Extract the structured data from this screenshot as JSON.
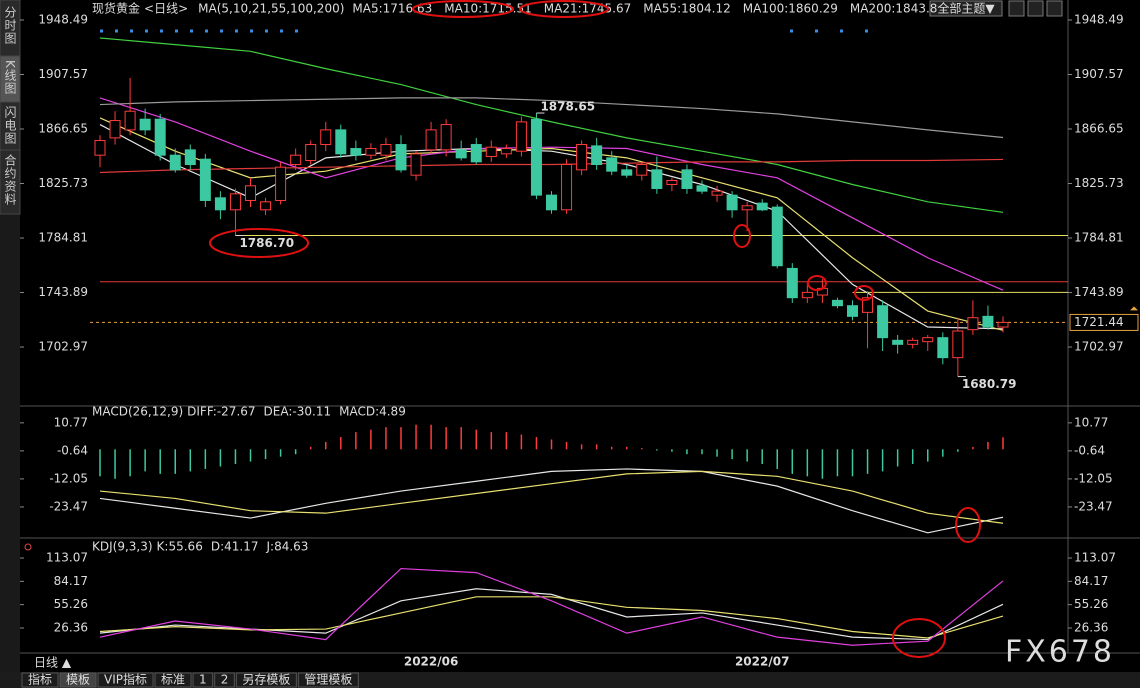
{
  "sidebar": [
    "分时图",
    "K线图",
    "闪电图",
    "合约资料"
  ],
  "header": {
    "symbol": "现货黄金",
    "period": "<日线>",
    "ma_params": "MA(5,10,21,55,100,200)",
    "theme": "全部主题▼"
  },
  "chart_data": [
    {
      "type": "candlestick",
      "categories": [
        null,
        null,
        null,
        null,
        null,
        null,
        null,
        null,
        null,
        null,
        null,
        null,
        null,
        null,
        null,
        null,
        null,
        null,
        null,
        null,
        null,
        null,
        "2022/06",
        null,
        null,
        null,
        null,
        null,
        null,
        null,
        null,
        null,
        null,
        null,
        null,
        null,
        null,
        null,
        null,
        null,
        null,
        null,
        null,
        null,
        "2022/07",
        null,
        null,
        null,
        null,
        null,
        null,
        null,
        null,
        null,
        null,
        null,
        null,
        null,
        null,
        null,
        null
      ],
      "open": [
        1847,
        1860,
        1866,
        1874,
        1874,
        1847,
        1851,
        1844,
        1815,
        1806,
        1813,
        1806,
        1813,
        1840,
        1843,
        1855,
        1866,
        1852,
        1847,
        1847,
        1855,
        1832,
        1851,
        1851,
        1851,
        1855,
        1846,
        1848,
        1850,
        1874,
        1817,
        1806,
        1836,
        1854,
        1845,
        1836,
        1832,
        1836,
        1825,
        1836,
        1824,
        1817,
        1817,
        1806,
        1811,
        1808,
        1762,
        1740,
        1742,
        1738,
        1734,
        1729,
        1734,
        1708,
        1705,
        1707,
        1710,
        1695,
        1716,
        1726,
        1718
      ],
      "high": [
        1862,
        1880,
        1905,
        1882,
        1878,
        1852,
        1855,
        1848,
        1820,
        1822,
        1830,
        1815,
        1842,
        1852,
        1858,
        1872,
        1870,
        1858,
        1856,
        1860,
        1862,
        1850,
        1872,
        1874,
        1858,
        1860,
        1858,
        1855,
        1876,
        1878.65,
        1820,
        1844,
        1858,
        1860,
        1850,
        1840,
        1842,
        1846,
        1830,
        1840,
        1828,
        1824,
        1820,
        1812,
        1814,
        1810,
        1766,
        1752,
        1754,
        1740,
        1738,
        1745,
        1738,
        1712,
        1710,
        1712,
        1714,
        1725,
        1738,
        1734,
        1726
      ],
      "low": [
        1838,
        1855,
        1862,
        1862,
        1843,
        1834,
        1836,
        1808,
        1799,
        1786.7,
        1808,
        1802,
        1810,
        1836,
        1840,
        1850,
        1845,
        1843,
        1844,
        1843,
        1834,
        1828,
        1848,
        1846,
        1843,
        1840,
        1842,
        1845,
        1846,
        1814,
        1803,
        1803,
        1832,
        1836,
        1832,
        1830,
        1828,
        1818,
        1820,
        1818,
        1818,
        1812,
        1800,
        1790,
        1805,
        1762,
        1736,
        1736,
        1736,
        1732,
        1723,
        1702,
        1700,
        1698,
        1702,
        1700,
        1690,
        1680.79,
        1712,
        1716,
        1714
      ],
      "close": [
        1858,
        1873,
        1880,
        1866,
        1847,
        1836,
        1840,
        1813,
        1806,
        1818,
        1824,
        1812,
        1838,
        1847,
        1855,
        1866,
        1848,
        1847,
        1852,
        1855,
        1836,
        1848,
        1866,
        1870,
        1845,
        1842,
        1853,
        1852,
        1872,
        1817,
        1806,
        1840,
        1855,
        1840,
        1835,
        1832,
        1840,
        1822,
        1828,
        1822,
        1820,
        1820,
        1806,
        1809,
        1806,
        1764,
        1740,
        1744,
        1747,
        1734,
        1726,
        1740,
        1710,
        1705,
        1708,
        1710,
        1695,
        1715,
        1725,
        1718,
        1721.44
      ],
      "up_color": "#ff3b3b",
      "down_color": "#3cc8a0",
      "ylim": [
        1661.7,
        1954.5
      ],
      "yticks": [
        1948.49,
        1907.57,
        1866.65,
        1825.73,
        1784.81,
        1743.89,
        1702.97
      ],
      "series": [
        {
          "label": "MA5:",
          "color": "#e6e6e6",
          "x": [
            0,
            5,
            10,
            15,
            20,
            25,
            30,
            35,
            40,
            45,
            50,
            55,
            60
          ],
          "values": [
            1870,
            1840,
            1815,
            1845,
            1850,
            1852,
            1850,
            1840,
            1825,
            1805,
            1750,
            1718,
            1716.63
          ]
        },
        {
          "label": "MA10:",
          "color": "#e8e070",
          "x": [
            0,
            5,
            10,
            15,
            20,
            25,
            30,
            35,
            40,
            45,
            50,
            55,
            60
          ],
          "values": [
            1875,
            1850,
            1830,
            1835,
            1848,
            1850,
            1852,
            1845,
            1830,
            1815,
            1770,
            1730,
            1715.51
          ]
        },
        {
          "label": "MA21:",
          "color": "#e040e0",
          "x": [
            0,
            5,
            10,
            15,
            20,
            25,
            30,
            35,
            40,
            45,
            50,
            55,
            60
          ],
          "values": [
            1890,
            1872,
            1850,
            1830,
            1845,
            1852,
            1853,
            1852,
            1840,
            1830,
            1800,
            1770,
            1745.67
          ]
        },
        {
          "label": "MA55:",
          "color": "#40d040",
          "x": [
            0,
            5,
            10,
            15,
            20,
            25,
            30,
            35,
            40,
            45,
            50,
            55,
            60
          ],
          "values": [
            1935,
            1930,
            1925,
            1912,
            1900,
            1885,
            1872,
            1860,
            1850,
            1840,
            1825,
            1812,
            1804.12
          ]
        },
        {
          "label": "MA100:",
          "color": "#9a9a9a",
          "x": [
            0,
            5,
            10,
            15,
            20,
            25,
            30,
            35,
            40,
            45,
            50,
            55,
            60
          ],
          "values": [
            1885,
            1887,
            1888,
            1889,
            1890,
            1890,
            1888,
            1885,
            1882,
            1878,
            1872,
            1866,
            1860.29
          ]
        },
        {
          "label": "MA200:",
          "color": "#e03a3a",
          "x": [
            0,
            5,
            10,
            15,
            20,
            25,
            30,
            35,
            40,
            45,
            50,
            55,
            60
          ],
          "values": [
            1834,
            1836,
            1837,
            1838,
            1839,
            1840,
            1840,
            1841,
            1842,
            1842,
            1843,
            1843,
            1843.8
          ]
        }
      ],
      "hlines": [
        {
          "value": 1786.7,
          "color": "#e8e060",
          "start": 9
        },
        {
          "value": 1752,
          "color": "#e03a3a",
          "start": 0
        },
        {
          "value": 1744,
          "color": "#e8e060",
          "start": 50
        }
      ],
      "last_price": 1721.44,
      "annotations": [
        {
          "value": 1878.65,
          "label": "1878.65",
          "color": "#e03a3a"
        },
        {
          "value": 1786.7,
          "label": "1786.70",
          "color": "#3cc8a0"
        },
        {
          "value": 1680.79,
          "label": "1680.79",
          "color": "#3cc8a0"
        }
      ]
    },
    {
      "type": "macd",
      "title": "MACD(26,12,9)",
      "histogram": {
        "label": "MACD:",
        "color": "#e040e0",
        "values": [
          -11,
          -12,
          -11,
          -9,
          -10,
          -10,
          -9,
          -8,
          -7,
          -6,
          -5,
          -4,
          -3,
          -2,
          1,
          3,
          5,
          7,
          8,
          9,
          9,
          10,
          10,
          9,
          9,
          8,
          7,
          7,
          6,
          5,
          4,
          3,
          2,
          2,
          1,
          1,
          0.5,
          -0.5,
          -1,
          -2,
          -2,
          -3,
          -4,
          -5,
          -6,
          -8,
          -10,
          -11,
          -12,
          -11,
          -11,
          -10,
          -9,
          -7,
          -6,
          -5,
          -3,
          -1,
          1,
          3,
          4.89
        ]
      },
      "series": [
        {
          "label": "DIFF:",
          "color": "#e6e6e6",
          "x": [
            0,
            5,
            10,
            15,
            20,
            25,
            30,
            35,
            40,
            45,
            50,
            55,
            60
          ],
          "values": [
            -20,
            -24,
            -28,
            -22,
            -17,
            -13,
            -9,
            -8,
            -9,
            -15,
            -25,
            -34,
            -27.67
          ]
        },
        {
          "label": "DEA:",
          "color": "#e8e070",
          "x": [
            0,
            5,
            10,
            15,
            20,
            25,
            30,
            35,
            40,
            45,
            50,
            55,
            60
          ],
          "values": [
            -17,
            -20,
            -25,
            -26,
            -22,
            -18,
            -14,
            -10,
            -9,
            -11,
            -17,
            -26,
            -30.11
          ]
        }
      ],
      "ylim": [
        -35.3,
        16.0
      ],
      "yticks": [
        10.77,
        -0.64,
        -12.05,
        -23.47
      ]
    },
    {
      "type": "line",
      "title": "KDJ(9,3,3)",
      "series": [
        {
          "label": "K:",
          "color": "#e6e6e6",
          "x": [
            0,
            5,
            10,
            15,
            20,
            25,
            30,
            35,
            40,
            45,
            50,
            55,
            60
          ],
          "values": [
            20,
            30,
            25,
            20,
            60,
            75,
            68,
            40,
            45,
            30,
            15,
            12,
            55.66
          ]
        },
        {
          "label": "D:",
          "color": "#e8e070",
          "x": [
            0,
            5,
            10,
            15,
            20,
            25,
            30,
            35,
            40,
            45,
            50,
            55,
            60
          ],
          "values": [
            22,
            28,
            24,
            25,
            45,
            65,
            65,
            52,
            48,
            38,
            22,
            14,
            41.17
          ]
        },
        {
          "label": "J:",
          "color": "#e040e0",
          "x": [
            0,
            5,
            10,
            15,
            20,
            25,
            30,
            35,
            40,
            45,
            50,
            55,
            60
          ],
          "values": [
            15,
            35,
            25,
            12,
            100,
            95,
            60,
            20,
            40,
            15,
            5,
            10,
            84.63
          ]
        }
      ],
      "ylim": [
        -3.4,
        135.4
      ],
      "yticks": [
        113.07,
        84.17,
        55.26,
        26.36
      ]
    }
  ],
  "footer": {
    "period": "日线 ▲",
    "tabs": [
      "指标",
      "模板",
      "VIP指标",
      "标准",
      "1",
      "2",
      "另存模板",
      "管理模板"
    ]
  },
  "watermark": "FX678"
}
